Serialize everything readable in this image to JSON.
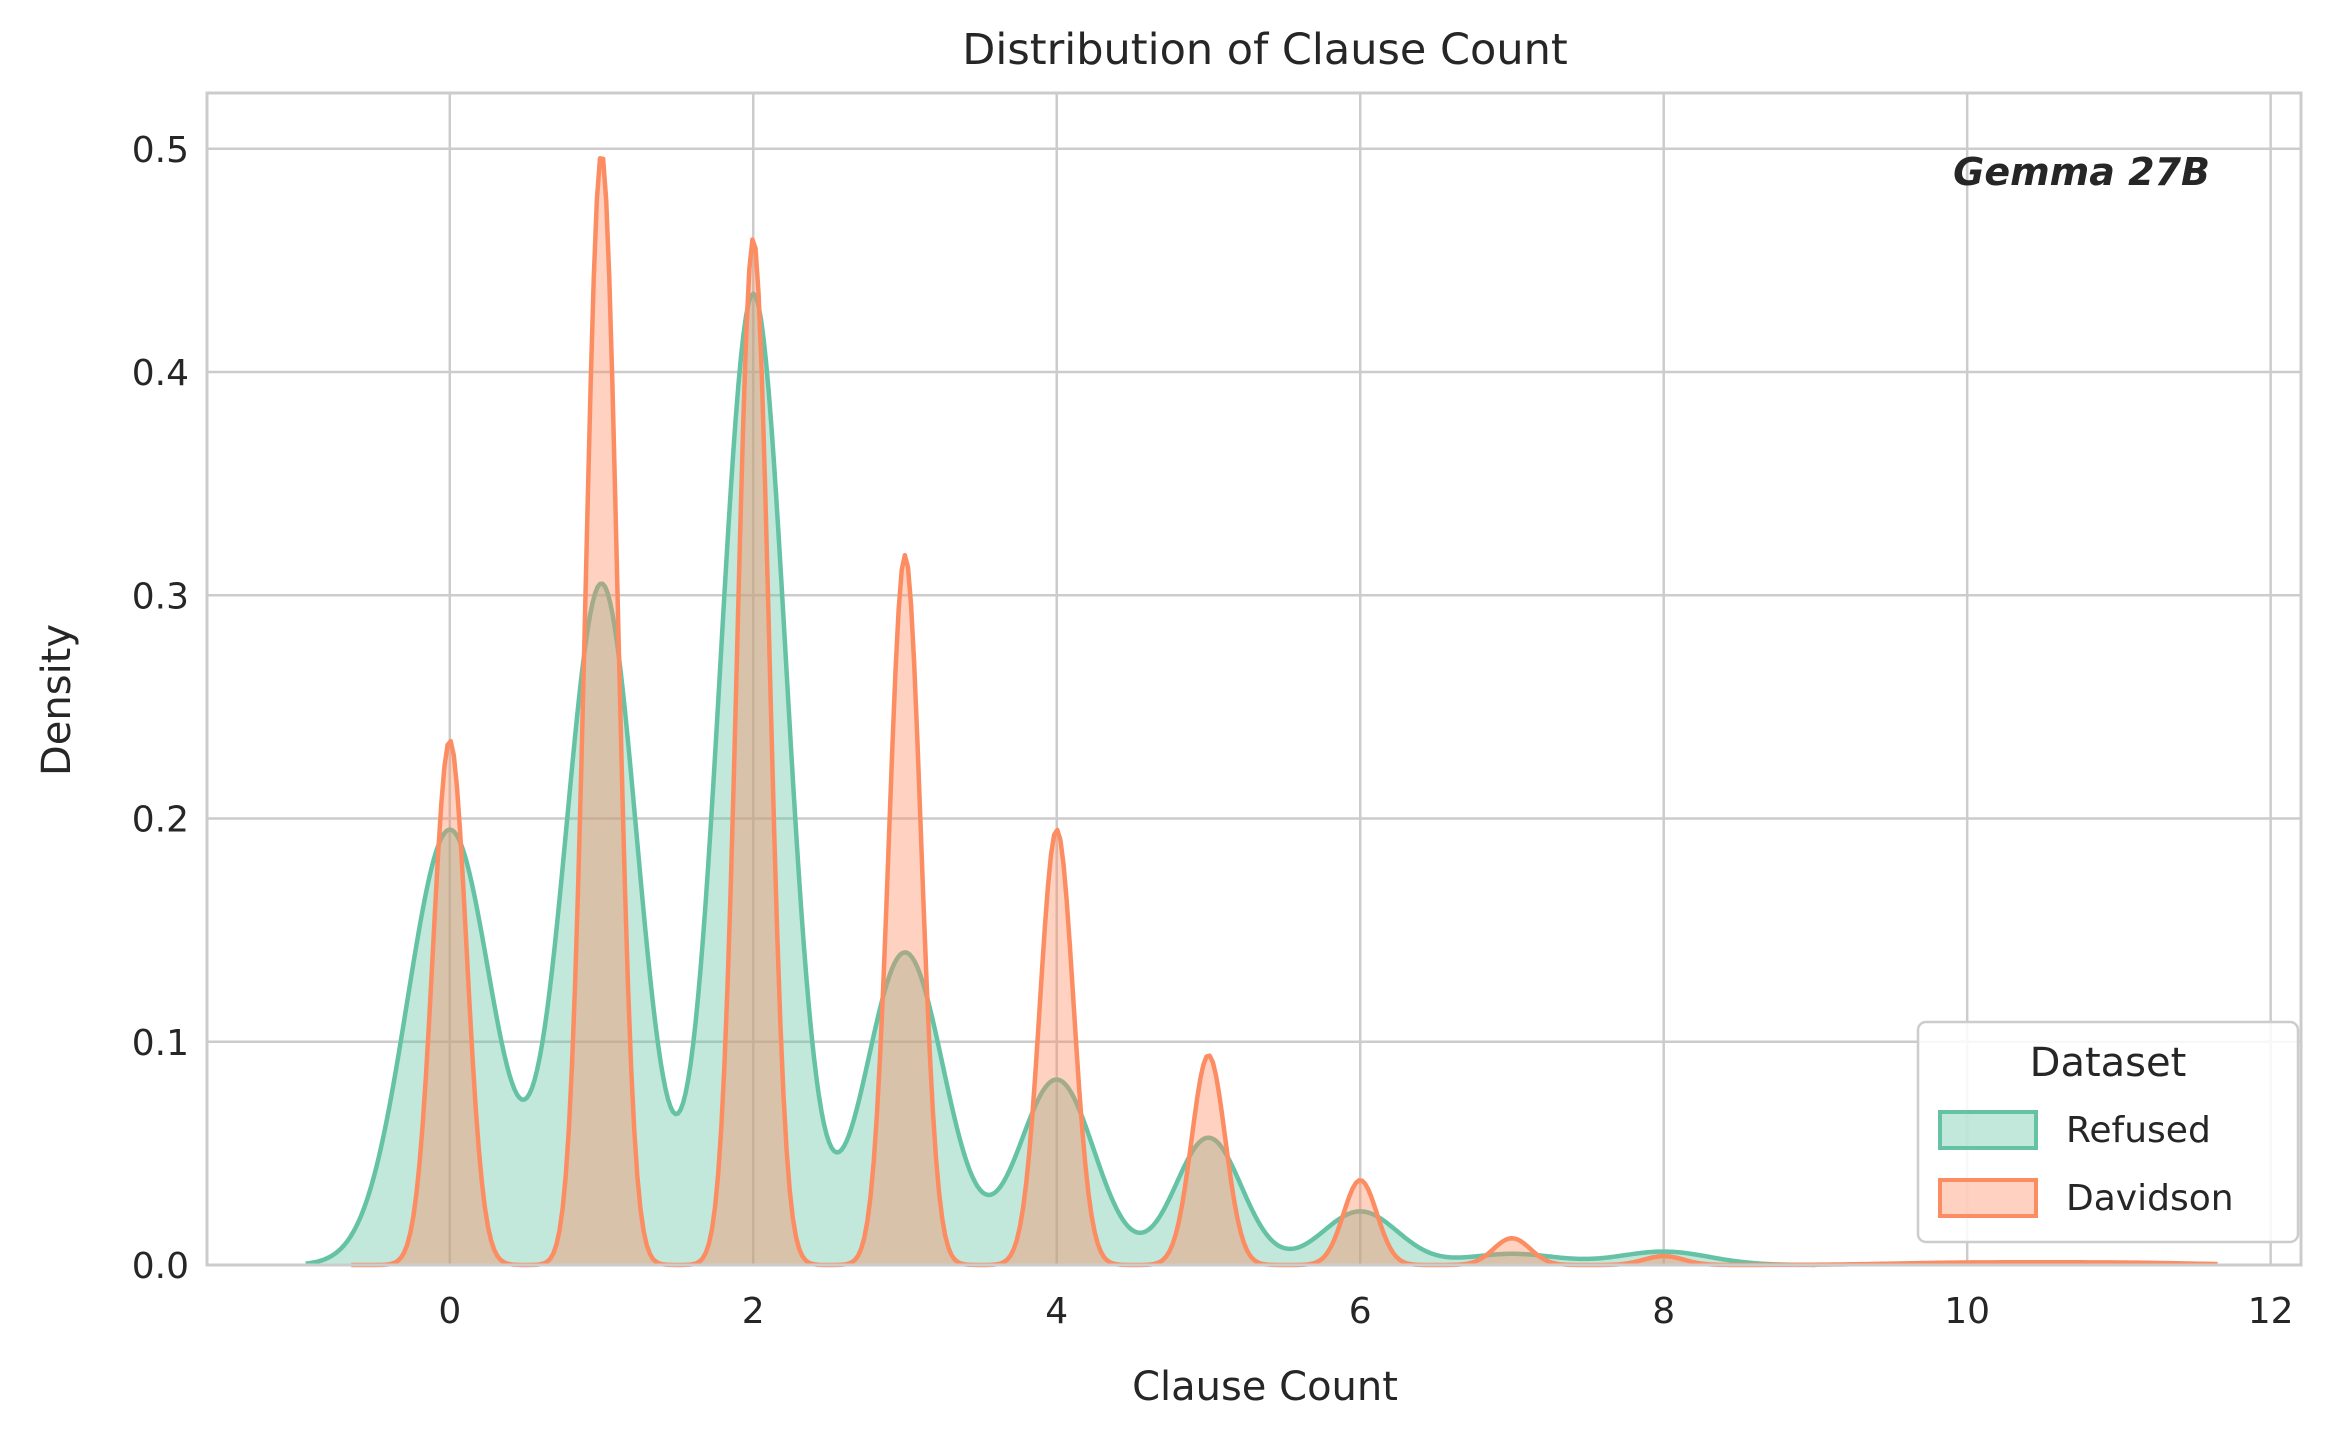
{
  "chart_data": {
    "type": "area",
    "title": "Distribution of Clause Count",
    "xlabel": "Clause Count",
    "ylabel": "Density",
    "xlim": [
      -1.6,
      12.2
    ],
    "ylim": [
      0,
      0.525
    ],
    "xticks": [
      0,
      2,
      4,
      6,
      8,
      10,
      12
    ],
    "yticks": [
      0.0,
      0.1,
      0.2,
      0.3,
      0.4,
      0.5
    ],
    "xtick_labels": [
      "0",
      "2",
      "4",
      "6",
      "8",
      "10",
      "12"
    ],
    "ytick_labels": [
      "0.0",
      "0.1",
      "0.2",
      "0.3",
      "0.4",
      "0.5"
    ],
    "grid": true,
    "annotation": "Gemma 27B",
    "legend": {
      "title": "Dataset",
      "placement": "lower-right"
    },
    "series": [
      {
        "name": "Refused",
        "color": "#66c2a5",
        "fill_opacity": 0.4,
        "x_range": [
          -0.95,
          9.0
        ],
        "peaks": [
          {
            "x": 0,
            "h": 0.195,
            "w": 0.28
          },
          {
            "x": 1,
            "h": 0.305,
            "w": 0.24
          },
          {
            "x": 2,
            "h": 0.435,
            "w": 0.22
          },
          {
            "x": 3,
            "h": 0.14,
            "w": 0.26
          },
          {
            "x": 4,
            "h": 0.083,
            "w": 0.25
          },
          {
            "x": 5,
            "h": 0.057,
            "w": 0.22
          },
          {
            "x": 6,
            "h": 0.024,
            "w": 0.25
          },
          {
            "x": 7,
            "h": 0.005,
            "w": 0.3
          },
          {
            "x": 8,
            "h": 0.006,
            "w": 0.3
          }
        ]
      },
      {
        "name": "Davidson",
        "color": "#fc8d62",
        "fill_opacity": 0.4,
        "x_range": [
          -0.65,
          11.65
        ],
        "peaks": [
          {
            "x": 0,
            "h": 0.235,
            "w": 0.11
          },
          {
            "x": 1,
            "h": 0.498,
            "w": 0.105
          },
          {
            "x": 2,
            "h": 0.46,
            "w": 0.105
          },
          {
            "x": 3,
            "h": 0.318,
            "w": 0.105
          },
          {
            "x": 4,
            "h": 0.195,
            "w": 0.11
          },
          {
            "x": 5,
            "h": 0.094,
            "w": 0.11
          },
          {
            "x": 6,
            "h": 0.038,
            "w": 0.11
          },
          {
            "x": 7,
            "h": 0.012,
            "w": 0.12
          },
          {
            "x": 8,
            "h": 0.004,
            "w": 0.13
          },
          {
            "x": 10,
            "h": 0.001,
            "w": 0.5
          },
          {
            "x": 11,
            "h": 0.001,
            "w": 0.5
          }
        ]
      }
    ]
  }
}
